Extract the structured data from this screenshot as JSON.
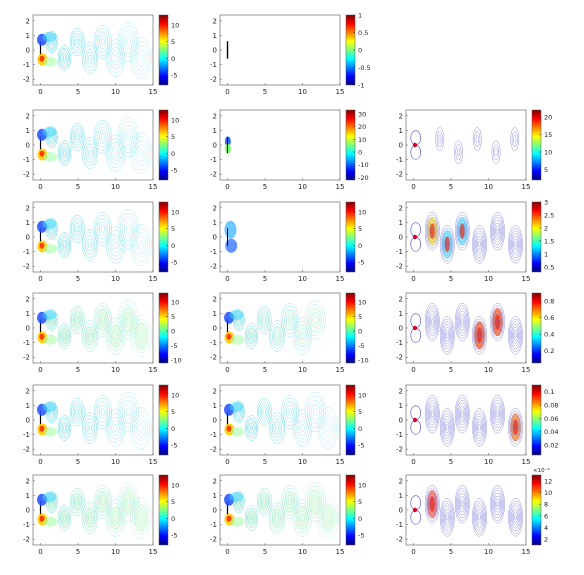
{
  "figure": {
    "layout": {
      "rows": 6,
      "cols": 3,
      "empty_panels": [
        "r0c2"
      ]
    },
    "palette": {
      "axis": "#333333",
      "jet": [
        "#00007f",
        "#0000ff",
        "#007fff",
        "#00ffff",
        "#7fff7f",
        "#ffff00",
        "#ff7f00",
        "#ff0000",
        "#7f0000"
      ],
      "contour_cool": "#5555cc",
      "plate": "#000000"
    },
    "axes_common": {
      "type": "contour",
      "xlim": [
        -1,
        15
      ],
      "ylim": [
        -2.4,
        2.4
      ],
      "xticks": [
        "0",
        "5",
        "10",
        "15"
      ],
      "yticks": [
        "2",
        "1",
        "0",
        "-1",
        "-2"
      ]
    }
  },
  "chart_data": [
    {
      "panel": "r0c0",
      "type": "heatmap",
      "field": "wake-full",
      "colormap": "jet",
      "filled_near_body": true,
      "clim": [
        -8,
        13
      ],
      "colorbar_ticks": [
        "10",
        "5",
        "0",
        "-5"
      ]
    },
    {
      "panel": "r0c1",
      "type": "heatmap",
      "field": "plate-only",
      "colormap": "jet",
      "clim": [
        -1,
        1
      ],
      "colorbar_ticks": [
        "1",
        "0.5",
        "0",
        "-0.5",
        "-1"
      ]
    },
    {
      "panel": "r1c0",
      "type": "heatmap",
      "field": "wake-full",
      "colormap": "jet",
      "clim": [
        -8,
        13
      ],
      "colorbar_ticks": [
        "10",
        "5",
        "0",
        "-5"
      ]
    },
    {
      "panel": "r1c1",
      "type": "heatmap",
      "field": "near-plate",
      "colormap": "jet",
      "clim": [
        -22,
        33
      ],
      "colorbar_ticks": [
        "30",
        "20",
        "10",
        "0",
        "-10",
        "-20"
      ]
    },
    {
      "panel": "r1c2",
      "type": "heatmap",
      "field": "sparse-mode",
      "colormap": "jet",
      "clim": [
        2,
        22
      ],
      "colorbar_ticks": [
        "20",
        "15",
        "10",
        "5"
      ]
    },
    {
      "panel": "r2c0",
      "type": "heatmap",
      "field": "wake-full",
      "colormap": "jet",
      "clim": [
        -8,
        13
      ],
      "colorbar_ticks": [
        "10",
        "5",
        "0",
        "-5"
      ]
    },
    {
      "panel": "r2c1",
      "type": "heatmap",
      "field": "near-vortex",
      "colormap": "jet",
      "clim": [
        -8,
        13
      ],
      "colorbar_ticks": [
        "10",
        "5",
        "0",
        "-5"
      ]
    },
    {
      "panel": "r2c2",
      "type": "heatmap",
      "field": "mode-strong",
      "colormap": "jet",
      "clim": [
        0.3,
        3
      ],
      "colorbar_ticks": [
        "3",
        "2.5",
        "2",
        "1.5",
        "1",
        "0.5"
      ]
    },
    {
      "panel": "r3c0",
      "type": "heatmap",
      "field": "wake-full-green",
      "colormap": "jet",
      "clim": [
        -11,
        13
      ],
      "colorbar_ticks": [
        "10",
        "5",
        "0",
        "-5",
        "-10"
      ]
    },
    {
      "panel": "r3c1",
      "type": "heatmap",
      "field": "wake-partial",
      "colormap": "jet",
      "clim": [
        -11,
        13
      ],
      "colorbar_ticks": [
        "10",
        "5",
        "0",
        "-5",
        "-10"
      ]
    },
    {
      "panel": "r3c2",
      "type": "heatmap",
      "field": "mode-downstream",
      "colormap": "jet",
      "clim": [
        0.05,
        0.9
      ],
      "colorbar_ticks": [
        "0.8",
        "0.6",
        "0.4",
        "0.2"
      ]
    },
    {
      "panel": "r4c0",
      "type": "heatmap",
      "field": "wake-full",
      "colormap": "jet",
      "clim": [
        -8,
        13
      ],
      "colorbar_ticks": [
        "10",
        "5",
        "0",
        "-5"
      ]
    },
    {
      "panel": "r4c1",
      "type": "heatmap",
      "field": "wake-full",
      "colormap": "jet",
      "clim": [
        -8,
        13
      ],
      "colorbar_ticks": [
        "10",
        "5",
        "0",
        "-5"
      ]
    },
    {
      "panel": "r4c2",
      "type": "heatmap",
      "field": "mode-edge",
      "colormap": "jet",
      "clim": [
        0.005,
        0.11
      ],
      "colorbar_ticks": [
        "0.1",
        "0.08",
        "0.06",
        "0.04",
        "0.02"
      ]
    },
    {
      "panel": "r5c0",
      "type": "heatmap",
      "field": "wake-full-green",
      "colormap": "jet",
      "clim": [
        -8,
        13
      ],
      "colorbar_ticks": [
        "10",
        "5",
        "0",
        "-5"
      ]
    },
    {
      "panel": "r5c1",
      "type": "heatmap",
      "field": "wake-full-green",
      "colormap": "jet",
      "clim": [
        -8,
        13
      ],
      "colorbar_ticks": [
        "10",
        "5",
        "0",
        "-5"
      ]
    },
    {
      "panel": "r5c2",
      "type": "heatmap",
      "field": "mode-weak",
      "colormap": "jet",
      "clim": [
        1,
        13
      ],
      "colorbar_ticks": [
        "12",
        "10",
        "8",
        "6",
        "4",
        "2"
      ],
      "colorbar_exponent": "×10⁻⁴"
    }
  ]
}
